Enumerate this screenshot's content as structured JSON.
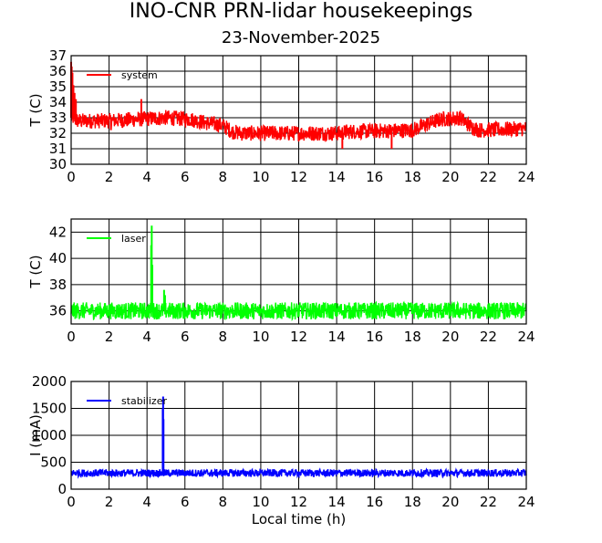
{
  "title": "INO-CNR PRN-lidar housekeepings",
  "subtitle": "23-November-2025",
  "chart_data": [
    {
      "type": "line",
      "ylabel": "T (C)",
      "xlabel": "",
      "xlim": [
        0,
        24
      ],
      "ylim": [
        30,
        37
      ],
      "xticks": [
        "0",
        "2",
        "4",
        "6",
        "8",
        "10",
        "12",
        "14",
        "16",
        "18",
        "20",
        "22",
        "24"
      ],
      "yticks": [
        "30",
        "31",
        "32",
        "33",
        "34",
        "35",
        "36",
        "37"
      ],
      "grid": true,
      "legend_position": "top-left",
      "series": [
        {
          "name": "system",
          "color": "#ff0000",
          "noise": 0.5,
          "baseline": [
            [
              0,
              33.0
            ],
            [
              0.1,
              33.0
            ],
            [
              0.3,
              32.8
            ],
            [
              2,
              32.8
            ],
            [
              5,
              33.0
            ],
            [
              6.3,
              32.9
            ],
            [
              7,
              32.7
            ],
            [
              8,
              32.5
            ],
            [
              8.5,
              32.1
            ],
            [
              9,
              32.0
            ],
            [
              14.2,
              32.0
            ],
            [
              14.5,
              32.1
            ],
            [
              18,
              32.2
            ],
            [
              18.8,
              32.6
            ],
            [
              19.5,
              32.9
            ],
            [
              20.5,
              33.0
            ],
            [
              21,
              32.5
            ],
            [
              21.5,
              32.2
            ],
            [
              24,
              32.3
            ]
          ],
          "spikes": [
            [
              0.0,
              36.6
            ],
            [
              0.03,
              36.3
            ],
            [
              0.07,
              35.9
            ],
            [
              0.12,
              35.1
            ],
            [
              0.18,
              34.6
            ],
            [
              0.25,
              34.2
            ],
            [
              3.7,
              34.2
            ],
            [
              14.3,
              31.0
            ],
            [
              16.9,
              31.0
            ],
            [
              2.1,
              32.2
            ]
          ],
          "points": [
            [
              0,
              33.0
            ],
            [
              2,
              32.8
            ],
            [
              4,
              33.0
            ],
            [
              6,
              32.9
            ],
            [
              8,
              32.5
            ],
            [
              10,
              32.0
            ],
            [
              12,
              32.0
            ],
            [
              14,
              32.0
            ],
            [
              16,
              32.1
            ],
            [
              18,
              32.2
            ],
            [
              20,
              33.0
            ],
            [
              22,
              32.2
            ],
            [
              24,
              32.3
            ]
          ]
        }
      ]
    },
    {
      "type": "line",
      "ylabel": "T (C)",
      "xlabel": "",
      "xlim": [
        0,
        24
      ],
      "ylim": [
        35,
        43
      ],
      "xticks": [
        "0",
        "2",
        "4",
        "6",
        "8",
        "10",
        "12",
        "14",
        "16",
        "18",
        "20",
        "22",
        "24"
      ],
      "yticks": [
        "36",
        "38",
        "40",
        "42"
      ],
      "grid": true,
      "legend_position": "top-left",
      "series": [
        {
          "name": "laser",
          "color": "#00ff00",
          "noise": 0.65,
          "baseline": [
            [
              0,
              36.0
            ],
            [
              24,
              36.0
            ]
          ],
          "spikes": [
            [
              4.25,
              42.5
            ],
            [
              4.22,
              41.0
            ],
            [
              4.28,
              39.5
            ],
            [
              4.9,
              37.6
            ],
            [
              4.95,
              37.2
            ]
          ],
          "points": [
            [
              0,
              36.0
            ],
            [
              2,
              36.0
            ],
            [
              4,
              36.0
            ],
            [
              4.25,
              42.5
            ],
            [
              6,
              36.0
            ],
            [
              8,
              36.0
            ],
            [
              10,
              36.0
            ],
            [
              12,
              36.0
            ],
            [
              14,
              36.0
            ],
            [
              16,
              36.0
            ],
            [
              18,
              36.0
            ],
            [
              20,
              36.0
            ],
            [
              22,
              36.0
            ],
            [
              24,
              36.0
            ]
          ]
        }
      ]
    },
    {
      "type": "line",
      "ylabel": "I (mA)",
      "xlabel": "Local time (h)",
      "xlim": [
        0,
        24
      ],
      "ylim": [
        0,
        2000
      ],
      "xticks": [
        "0",
        "2",
        "4",
        "6",
        "8",
        "10",
        "12",
        "14",
        "16",
        "18",
        "20",
        "22",
        "24"
      ],
      "yticks": [
        "0",
        "500",
        "1000",
        "1500",
        "2000"
      ],
      "grid": true,
      "legend_position": "top-left",
      "series": [
        {
          "name": "stabilizer",
          "color": "#0000ff",
          "noise": 70,
          "baseline": [
            [
              0,
              300
            ],
            [
              24,
              300
            ]
          ],
          "spikes": [
            [
              4.85,
              1720
            ],
            [
              4.83,
              1500
            ],
            [
              4.87,
              1300
            ]
          ],
          "points": [
            [
              0,
              300
            ],
            [
              2,
              300
            ],
            [
              4,
              300
            ],
            [
              4.85,
              1720
            ],
            [
              6,
              300
            ],
            [
              8,
              300
            ],
            [
              10,
              300
            ],
            [
              12,
              300
            ],
            [
              14,
              300
            ],
            [
              16,
              300
            ],
            [
              18,
              300
            ],
            [
              20,
              300
            ],
            [
              22,
              300
            ],
            [
              24,
              300
            ]
          ]
        }
      ]
    }
  ]
}
